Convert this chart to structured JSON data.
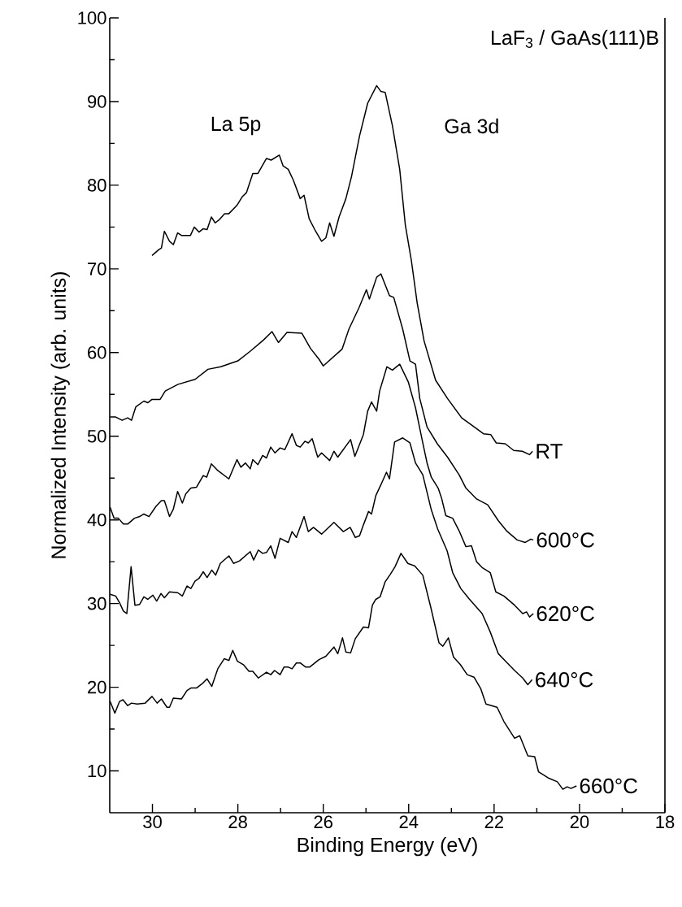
{
  "chart_data": {
    "type": "line",
    "title": "LaF$_{3}$ / GaAs(111)B",
    "xlabel": "Binding Energy (eV)",
    "ylabel": "Normalized Intensity (arb. units)",
    "xlim": [
      31,
      18
    ],
    "xticks": [
      30,
      28,
      26,
      24,
      22,
      20,
      18
    ],
    "ylim": [
      5,
      100
    ],
    "yticks": [
      10,
      20,
      30,
      40,
      50,
      60,
      70,
      80,
      90,
      100
    ],
    "marker": "none",
    "line_style": "solid",
    "annotations": [
      "La 5p",
      "Ga 3d"
    ],
    "series": [
      {
        "name": "RT",
        "color": "#000000",
        "x": [
          30.01,
          29.85,
          29.79,
          29.72,
          29.6,
          29.51,
          29.41,
          29.32,
          29.11,
          29.02,
          28.91,
          28.81,
          28.72,
          28.62,
          28.53,
          28.43,
          28.31,
          28.21,
          28.02,
          27.9,
          27.8,
          27.65,
          27.53,
          27.33,
          27.22,
          27.03,
          26.94,
          26.82,
          26.7,
          26.54,
          26.45,
          26.33,
          26.19,
          26.04,
          25.94,
          25.85,
          25.75,
          25.63,
          25.47,
          25.34,
          25.15,
          24.96,
          24.75,
          24.65,
          24.55,
          24.38,
          24.21,
          24.08,
          23.94,
          23.8,
          23.64,
          23.37,
          23.09,
          22.76,
          22.49,
          22.25,
          22.08,
          21.95,
          21.74,
          21.54,
          21.34,
          21.17,
          21.1
        ],
        "values": [
          71.6,
          72.3,
          72.5,
          74.5,
          73.3,
          72.9,
          74.3,
          74.0,
          74.0,
          75.0,
          74.4,
          74.8,
          74.7,
          76.2,
          75.5,
          75.9,
          76.6,
          76.6,
          77.6,
          78.6,
          79.1,
          81.4,
          81.4,
          83.2,
          83.0,
          83.6,
          82.3,
          81.9,
          80.6,
          78.4,
          78.8,
          76.0,
          74.6,
          73.3,
          73.7,
          75.5,
          73.9,
          76.2,
          78.4,
          81.0,
          85.9,
          89.8,
          91.9,
          91.2,
          91.1,
          87.1,
          81.9,
          75.3,
          71.1,
          65.9,
          61.4,
          56.7,
          54.5,
          52.2,
          51.2,
          50.3,
          50.2,
          49.2,
          49.1,
          48.3,
          48.2,
          47.8,
          48.2
        ]
      },
      {
        "name": "600°C",
        "color": "#000000",
        "x": [
          30.99,
          30.86,
          30.71,
          30.58,
          30.49,
          30.39,
          30.2,
          30.11,
          30.01,
          29.82,
          29.7,
          29.4,
          29.0,
          28.7,
          28.4,
          28.0,
          27.7,
          27.4,
          27.2,
          27.05,
          26.85,
          26.5,
          26.3,
          26.1,
          26.0,
          25.56,
          25.4,
          25.16,
          24.99,
          24.92,
          24.75,
          24.65,
          24.45,
          24.35,
          24.14,
          23.97,
          23.84,
          23.74,
          23.57,
          23.33,
          23.09,
          22.82,
          22.66,
          22.41,
          22.15,
          21.9,
          21.71,
          21.46,
          21.27,
          21.14,
          21.08
        ],
        "values": [
          52.3,
          52.3,
          51.9,
          52.2,
          51.9,
          53.5,
          54.2,
          54.0,
          54.4,
          54.4,
          55.4,
          56.2,
          56.8,
          58.0,
          58.3,
          59.0,
          60.2,
          61.5,
          62.5,
          61.2,
          62.4,
          62.3,
          60.5,
          59.2,
          58.4,
          60.4,
          62.8,
          65.4,
          67.5,
          66.4,
          69.0,
          69.4,
          66.8,
          66.6,
          62.8,
          59.0,
          58.6,
          54.5,
          51.1,
          49.1,
          47.5,
          45.4,
          43.8,
          42.5,
          41.8,
          39.9,
          38.7,
          37.6,
          37.3,
          37.7,
          37.6
        ]
      },
      {
        "name": "620°C",
        "color": "#000000",
        "x": [
          30.99,
          30.9,
          30.8,
          30.68,
          30.58,
          30.42,
          30.3,
          30.2,
          30.08,
          29.92,
          29.79,
          29.72,
          29.6,
          29.51,
          29.41,
          29.3,
          29.22,
          29.1,
          28.97,
          28.81,
          28.73,
          28.62,
          28.47,
          28.21,
          28.02,
          27.93,
          27.82,
          27.71,
          27.65,
          27.53,
          27.42,
          27.33,
          27.23,
          27.13,
          27.01,
          26.9,
          26.73,
          26.63,
          26.54,
          26.43,
          26.35,
          26.26,
          26.13,
          26.04,
          25.85,
          25.75,
          25.66,
          25.36,
          25.26,
          25.06,
          24.96,
          24.87,
          24.75,
          24.68,
          24.51,
          24.38,
          24.21,
          24.01,
          23.84,
          23.67,
          23.57,
          23.47,
          23.31,
          23.23,
          23.13,
          22.97,
          22.82,
          22.66,
          22.53,
          22.41,
          22.28,
          22.09,
          21.96,
          21.77,
          21.52,
          21.33,
          21.24,
          21.17,
          21.08
        ],
        "values": [
          41.5,
          40.2,
          40.2,
          39.5,
          39.5,
          40.2,
          40.4,
          40.7,
          40.4,
          41.6,
          42.3,
          42.3,
          40.4,
          41.3,
          43.4,
          42.0,
          43.1,
          43.8,
          43.9,
          45.3,
          45.1,
          46.7,
          45.9,
          44.9,
          47.2,
          46.3,
          46.8,
          46.1,
          47.2,
          46.6,
          47.7,
          47.4,
          48.7,
          48.0,
          48.6,
          48.4,
          50.3,
          48.9,
          48.7,
          49.4,
          49.2,
          49.7,
          47.5,
          48.0,
          47.1,
          48.2,
          47.5,
          49.6,
          47.6,
          50.2,
          53.0,
          54.1,
          53.0,
          55.4,
          58.3,
          57.9,
          58.6,
          56.5,
          53.4,
          49.2,
          46.8,
          45.1,
          43.8,
          42.6,
          40.5,
          40.2,
          38.7,
          36.8,
          36.9,
          35.0,
          34.3,
          33.7,
          31.4,
          30.9,
          29.8,
          28.8,
          29.0,
          28.4,
          28.8
        ]
      },
      {
        "name": "640°C",
        "color": "#000000",
        "x": [
          30.99,
          30.86,
          30.77,
          30.68,
          30.6,
          30.5,
          30.41,
          30.3,
          30.2,
          30.11,
          29.99,
          29.9,
          29.8,
          29.72,
          29.6,
          29.41,
          29.3,
          29.19,
          29.1,
          29.0,
          28.91,
          28.81,
          28.72,
          28.61,
          28.52,
          28.41,
          28.21,
          28.1,
          27.96,
          27.71,
          27.63,
          27.52,
          27.42,
          27.33,
          27.23,
          27.13,
          27.01,
          26.82,
          26.73,
          26.63,
          26.45,
          26.35,
          26.23,
          26.04,
          25.75,
          25.53,
          25.37,
          25.25,
          25.15,
          25.06,
          24.94,
          24.87,
          24.77,
          24.65,
          24.52,
          24.45,
          24.33,
          24.14,
          23.97,
          23.84,
          23.67,
          23.57,
          23.47,
          23.32,
          23.1,
          22.97,
          22.78,
          22.59,
          22.28,
          22.09,
          21.9,
          21.71,
          21.52,
          21.33,
          21.21,
          21.11
        ],
        "values": [
          31.1,
          30.9,
          30.1,
          29.1,
          28.8,
          34.4,
          29.8,
          29.9,
          30.8,
          30.5,
          31.0,
          30.3,
          31.2,
          30.7,
          31.4,
          31.3,
          30.9,
          32.1,
          31.8,
          32.7,
          33.0,
          33.8,
          33.1,
          34.0,
          33.4,
          34.8,
          35.7,
          34.8,
          35.1,
          36.2,
          35.2,
          36.4,
          36.0,
          36.1,
          36.9,
          35.4,
          37.8,
          37.3,
          38.6,
          37.9,
          40.4,
          38.6,
          39.1,
          38.3,
          39.7,
          38.6,
          39.1,
          37.9,
          38.1,
          39.4,
          41.0,
          40.7,
          42.9,
          44.2,
          45.7,
          44.9,
          49.3,
          49.8,
          49.2,
          46.8,
          45.4,
          43.3,
          41.2,
          38.9,
          36.3,
          33.7,
          31.8,
          30.6,
          28.8,
          26.6,
          24.0,
          23.0,
          22.0,
          21.1,
          20.3,
          20.9
        ]
      },
      {
        "name": "660°C",
        "color": "#000000",
        "x": [
          30.99,
          30.88,
          30.77,
          30.69,
          30.58,
          30.49,
          30.36,
          30.17,
          30.01,
          29.89,
          29.79,
          29.66,
          29.6,
          29.51,
          29.32,
          29.19,
          29.1,
          28.97,
          28.84,
          28.72,
          28.61,
          28.47,
          28.32,
          28.21,
          28.12,
          28.01,
          27.87,
          27.74,
          27.65,
          27.52,
          27.33,
          27.23,
          27.14,
          27.01,
          26.92,
          26.82,
          26.73,
          26.63,
          26.54,
          26.41,
          26.32,
          26.1,
          25.94,
          25.75,
          25.66,
          25.55,
          25.47,
          25.36,
          25.25,
          25.06,
          24.94,
          24.85,
          24.77,
          24.67,
          24.55,
          24.43,
          24.32,
          24.18,
          24.02,
          23.86,
          23.67,
          23.48,
          23.29,
          23.2,
          23.07,
          22.95,
          22.79,
          22.63,
          22.47,
          22.31,
          22.19,
          22.06,
          21.93,
          21.77,
          21.52,
          21.4,
          21.21,
          21.05,
          20.96,
          20.71,
          20.52,
          20.39,
          20.29,
          20.2,
          20.07
        ],
        "values": [
          18.3,
          16.9,
          18.3,
          18.5,
          17.8,
          18.1,
          18.0,
          18.1,
          18.9,
          18.1,
          18.6,
          17.6,
          17.6,
          18.7,
          18.6,
          19.6,
          19.9,
          19.9,
          20.4,
          21.0,
          20.1,
          22.2,
          23.4,
          23.2,
          24.4,
          23.1,
          22.7,
          21.9,
          21.9,
          21.1,
          21.8,
          21.5,
          22.0,
          21.5,
          22.4,
          22.4,
          22.2,
          22.9,
          22.9,
          22.4,
          22.4,
          23.3,
          23.7,
          24.8,
          24.0,
          25.9,
          24.2,
          24.1,
          25.8,
          27.2,
          27.1,
          29.8,
          30.5,
          30.8,
          32.6,
          33.5,
          34.4,
          36.0,
          34.8,
          34.5,
          33.4,
          29.5,
          25.3,
          24.9,
          25.9,
          23.6,
          22.7,
          21.5,
          21.2,
          19.8,
          18.0,
          17.8,
          17.6,
          15.9,
          13.9,
          14.2,
          11.8,
          11.7,
          9.9,
          9.1,
          8.7,
          7.8,
          8.1,
          7.9,
          8.2
        ]
      }
    ]
  }
}
